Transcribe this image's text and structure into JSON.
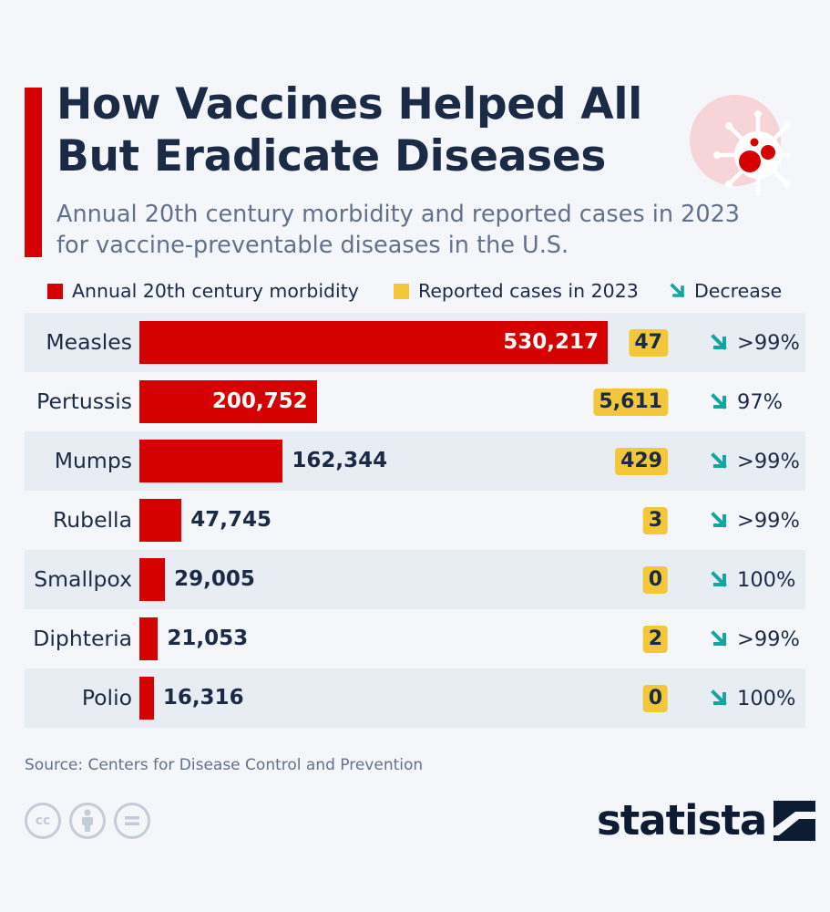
{
  "title": "How Vaccines Helped All But Eradicate Diseases",
  "subtitle": "Annual 20th century morbidity and reported cases in 2023 for vaccine-preventable diseases in the U.S.",
  "source": "Source: Centers for Disease Control and Prevention",
  "brand": "statista",
  "colors": {
    "morbidity": "#d50000",
    "cases_2023": "#f2c83a",
    "decrease_arrow": "#14a5a0",
    "text": "#1b2b45"
  },
  "chart_data": {
    "type": "bar",
    "orientation": "horizontal",
    "categories": [
      "Measles",
      "Pertussis",
      "Mumps",
      "Rubella",
      "Smallpox",
      "Diphteria",
      "Polio"
    ],
    "series": [
      {
        "name": "Annual 20th century morbidity",
        "values": [
          530217,
          200752,
          162344,
          47745,
          29005,
          21053,
          16316
        ]
      },
      {
        "name": "Reported cases in 2023",
        "values": [
          47,
          5611,
          429,
          3,
          0,
          2,
          0
        ]
      }
    ],
    "decrease_label": "Decrease",
    "decrease": [
      ">99%",
      "97%",
      ">99%",
      ">99%",
      "100%",
      ">99%",
      "100%"
    ],
    "value_labels": [
      "530,217",
      "200,752",
      "162,344",
      "47,745",
      "29,005",
      "21,053",
      "16,316"
    ],
    "case_labels": [
      "47",
      "5,611",
      "429",
      "3",
      "0",
      "2",
      "0"
    ],
    "legend_placement": "top",
    "grid": false
  },
  "icons": {
    "header": "virus-icon",
    "decrease": "arrow-down-right-icon",
    "license": [
      "creative-commons-icon",
      "attribution-icon",
      "no-derivatives-icon"
    ],
    "logo": "statista-logo-icon"
  }
}
